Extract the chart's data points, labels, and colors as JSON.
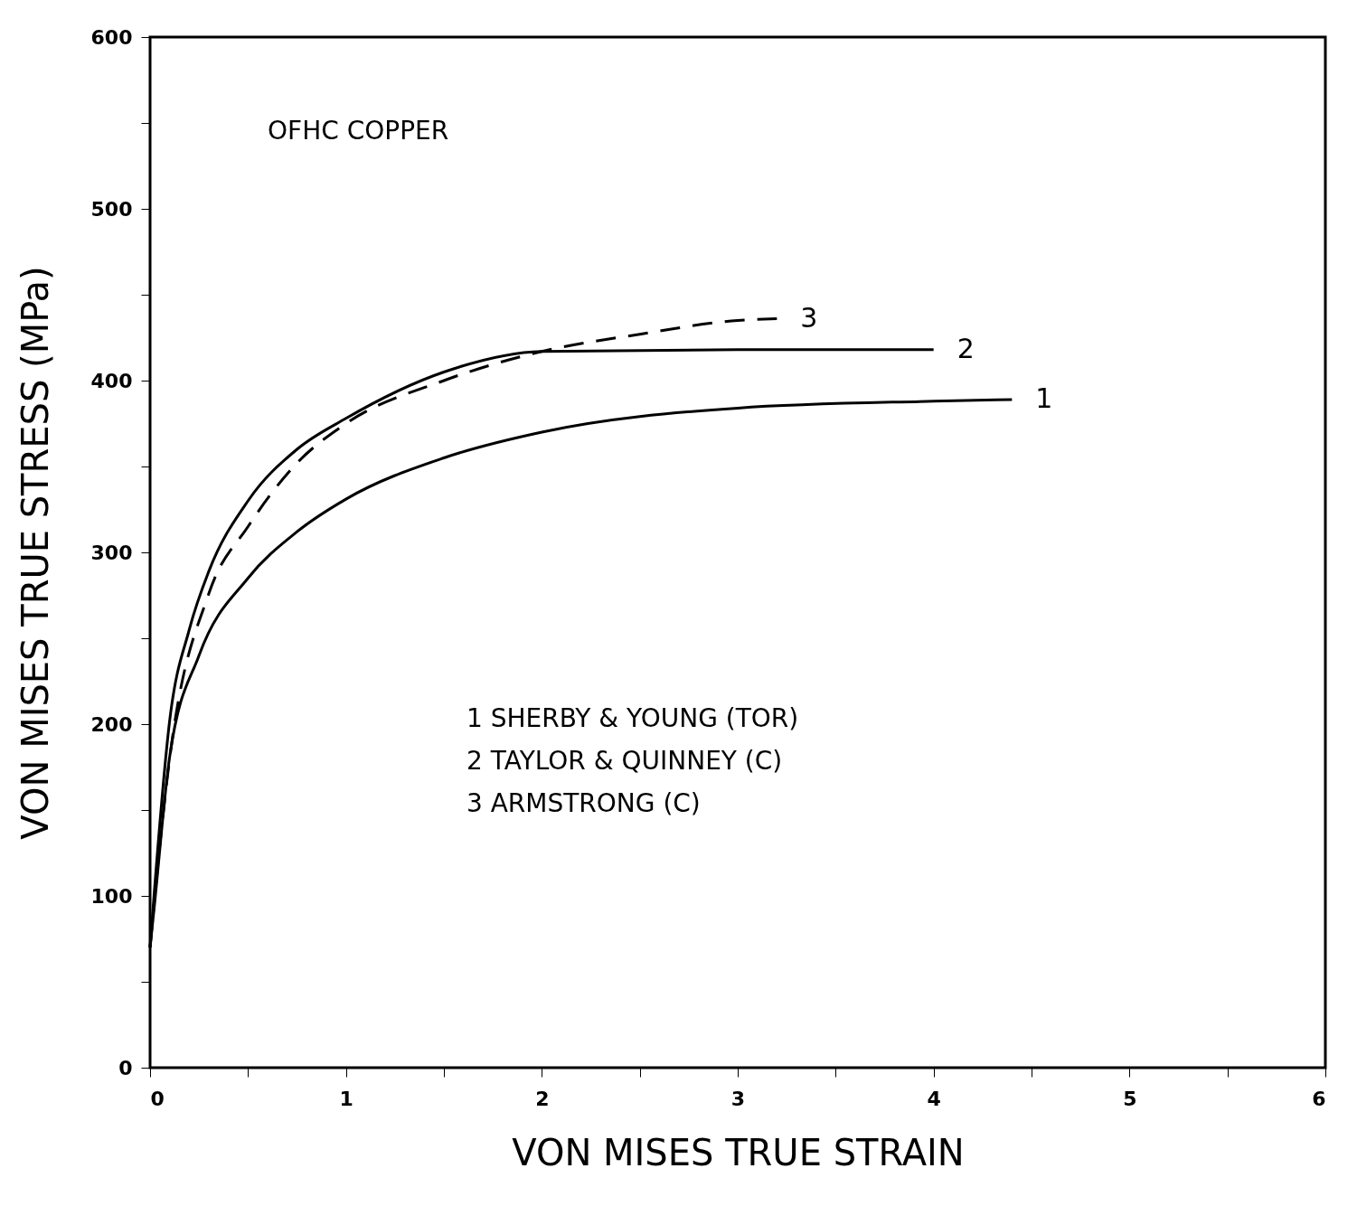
{
  "chart_data": {
    "type": "line",
    "title": "OFHC COPPER",
    "xlabel": "VON MISES TRUE STRAIN",
    "ylabel": "VON MISES TRUE STRESS (MPa)",
    "xlim": [
      0,
      6
    ],
    "ylim": [
      0,
      600
    ],
    "xticks": [
      0,
      {
        "value": 0.5,
        "label": null
      },
      1,
      {
        "value": 1.5,
        "label": null
      },
      2,
      {
        "value": 2.5,
        "label": null
      },
      3,
      {
        "value": 3.5,
        "label": null
      },
      4,
      {
        "value": 4.5,
        "label": null
      },
      5,
      {
        "value": 5.5,
        "label": null
      },
      6
    ],
    "yticks": [
      0,
      {
        "value": 50,
        "label": null
      },
      100,
      {
        "value": 150,
        "label": null
      },
      200,
      {
        "value": 250,
        "label": null
      },
      300,
      {
        "value": 350,
        "label": null
      },
      400,
      {
        "value": 450,
        "label": null
      },
      500,
      {
        "value": 550,
        "label": null
      },
      600
    ],
    "grid": false,
    "annotations": [
      "1 SHERBY & YOUNG (TOR)",
      "2 TAYLOR & QUINNEY (C)",
      "3 ARMSTRONG (C)"
    ],
    "series": [
      {
        "name": "1",
        "color": "#000000",
        "line_style": "solid",
        "x": [
          0,
          0.02,
          0.1,
          0.25,
          0.5,
          0.75,
          1,
          1.5,
          2,
          3,
          4,
          4.4
        ],
        "values": [
          70,
          92,
          181,
          240,
          285,
          312,
          331,
          355,
          370,
          384,
          388,
          389
        ]
      },
      {
        "name": "2",
        "color": "#000000",
        "line_style": "solid",
        "x": [
          0,
          0.02,
          0.1,
          0.2,
          0.3,
          0.5,
          0.75,
          1,
          1.5,
          2,
          3,
          4
        ],
        "values": [
          70,
          100,
          202,
          255,
          289,
          330,
          360,
          378,
          405,
          417,
          418,
          418
        ]
      },
      {
        "name": "3",
        "color": "#000000",
        "line_style": "dashed",
        "x": [
          0,
          0.02,
          0.1,
          0.3,
          0.5,
          0.75,
          1,
          1.5,
          2,
          2.5,
          3,
          3.2
        ],
        "values": [
          70,
          95,
          180,
          276,
          315,
          352,
          375,
          400,
          417,
          427,
          435,
          436
        ]
      }
    ]
  }
}
